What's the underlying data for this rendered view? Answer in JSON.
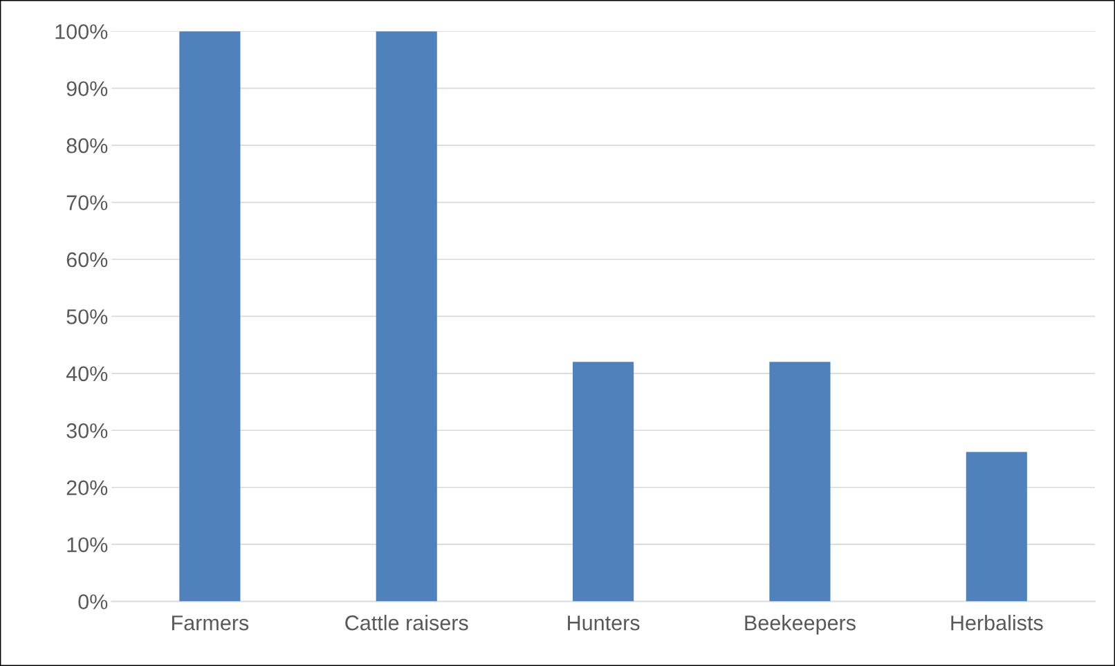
{
  "chart_data": {
    "type": "bar",
    "categories": [
      "Farmers",
      "Cattle raisers",
      "Hunters",
      "Beekeepers",
      "Herbalists"
    ],
    "values": [
      100,
      100,
      42,
      42,
      26.2
    ],
    "color": "#4f81bd",
    "ylim": [
      0,
      100
    ],
    "yticks": [
      {
        "value": 0,
        "label": "0%"
      },
      {
        "value": 10,
        "label": "10%"
      },
      {
        "value": 20,
        "label": "20%"
      },
      {
        "value": 30,
        "label": "30%"
      },
      {
        "value": 40,
        "label": "40%"
      },
      {
        "value": 50,
        "label": "50%"
      },
      {
        "value": 60,
        "label": "60%"
      },
      {
        "value": 70,
        "label": "70%"
      },
      {
        "value": 80,
        "label": "80%"
      },
      {
        "value": 90,
        "label": "90%"
      },
      {
        "value": 100,
        "label": "100%"
      }
    ],
    "grid": "y"
  }
}
